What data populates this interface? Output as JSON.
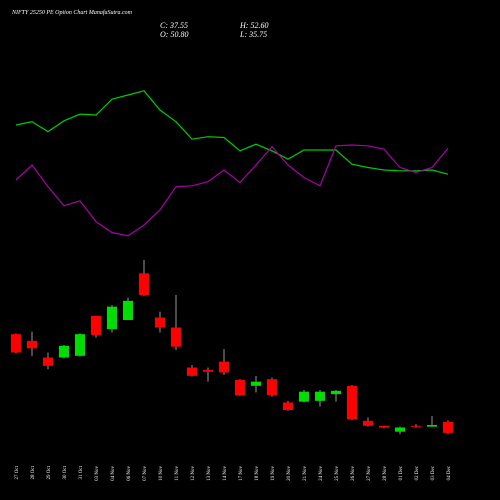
{
  "chart_data": {
    "type": "candlestick",
    "title": "NIFTY 25250 PE Option Chart ManafaSutra.com",
    "ohlc_labels": [
      "C: 37.55",
      "H: 52.60",
      "O: 50.80",
      "L: 35.75"
    ],
    "categories": [
      "27 Oct",
      "28 Oct",
      "29 Oct",
      "30 Oct",
      "31 Oct",
      "03 Nov",
      "04 Nov",
      "06 Nov",
      "07 Nov",
      "10 Nov",
      "11 Nov",
      "12 Nov",
      "13 Nov",
      "14 Nov",
      "17 Nov",
      "18 Nov",
      "19 Nov",
      "20 Nov",
      "21 Nov",
      "24 Nov",
      "25 Nov",
      "26 Nov",
      "27 Nov",
      "28 Nov",
      "01 Dec",
      "02 Dec",
      "03 Dec",
      "04 Dec"
    ],
    "open": [
      156,
      148,
      128,
      128,
      130,
      178,
      162,
      173,
      229,
      176,
      164,
      116,
      113,
      123,
      101,
      94,
      102,
      74,
      75,
      76,
      84,
      94,
      52,
      46,
      39,
      46,
      45,
      50.8
    ],
    "high": [
      157,
      159,
      134,
      143,
      157,
      178,
      191,
      200,
      245,
      183,
      203,
      119,
      116,
      138,
      102,
      106,
      104,
      76,
      89,
      89,
      89,
      95,
      56,
      46,
      45,
      48,
      58,
      52.6
    ],
    "low": [
      133,
      130,
      114,
      127,
      129,
      152,
      158,
      173,
      202,
      158,
      137,
      105,
      99,
      107,
      82,
      86,
      81,
      64,
      74,
      69,
      75,
      53,
      45,
      43,
      36,
      44,
      45,
      35.75
    ],
    "close": [
      134,
      139,
      118,
      142,
      156,
      155,
      189,
      196,
      203,
      164,
      141,
      106,
      111,
      110,
      83,
      99,
      83,
      65,
      87,
      87,
      88,
      54,
      46,
      44,
      44,
      45,
      47,
      37.55
    ],
    "up_color": "#00dd00",
    "down_color": "#ff0000",
    "series": [
      {
        "color": "#00cc00",
        "values": [
          407,
          411,
          399,
          412,
          420,
          419,
          438,
          443,
          448,
          425,
          411,
          390,
          393,
          392,
          376,
          384,
          376,
          366,
          377,
          377,
          377,
          360,
          356,
          353,
          352,
          352,
          353,
          348
        ]
      },
      {
        "color": "#aa00aa",
        "values": [
          341,
          359,
          333,
          310,
          316,
          291,
          278,
          274,
          287,
          305,
          333,
          334,
          339,
          353,
          338,
          359,
          381,
          359,
          344,
          334,
          382,
          383,
          382,
          378,
          356,
          350,
          356,
          379
        ]
      }
    ],
    "ylim": [
      -43,
      557
    ]
  }
}
